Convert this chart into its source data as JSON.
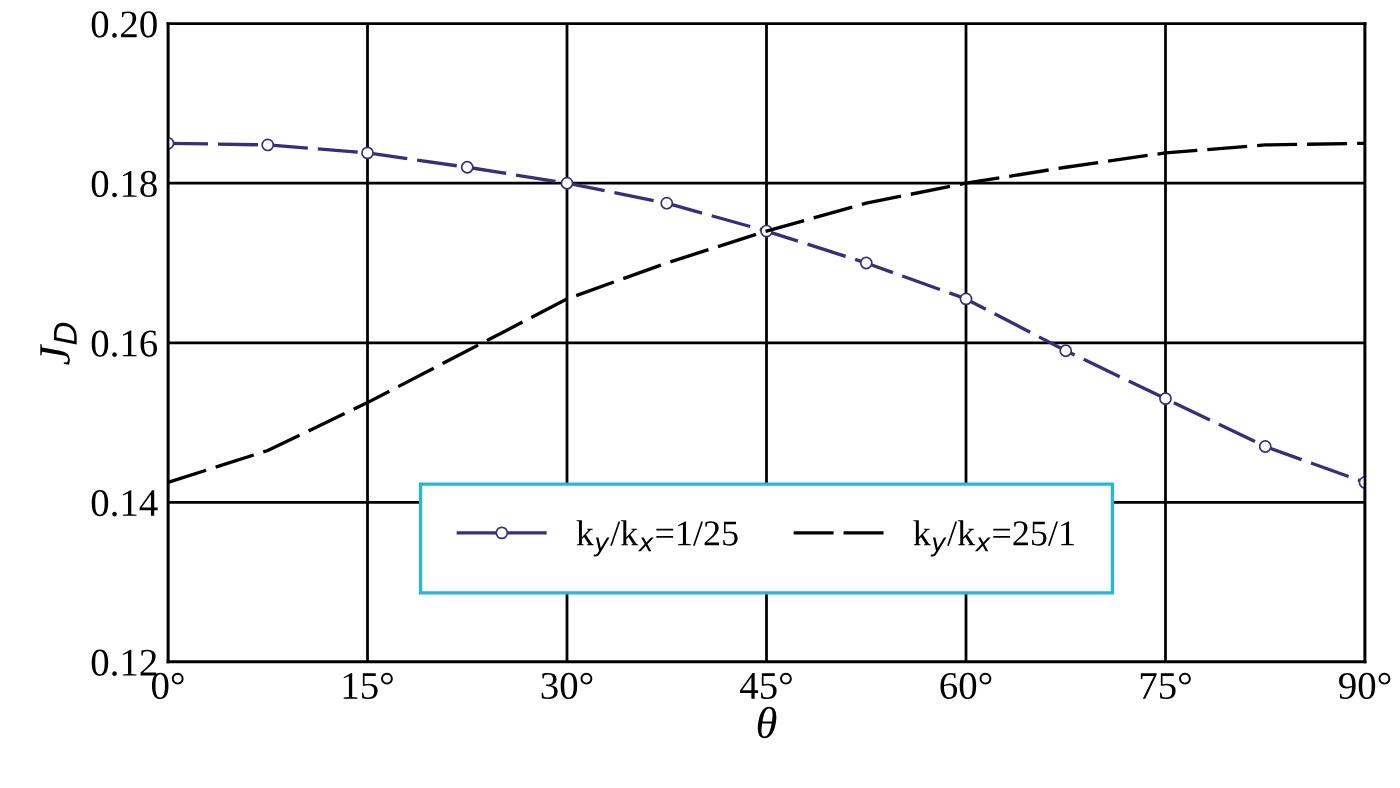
{
  "chart_data": {
    "type": "line",
    "xlabel": "θ",
    "ylabel": "J$_{D}$",
    "x": [
      0,
      7.5,
      15,
      22.5,
      30,
      37.5,
      45,
      52.5,
      60,
      67.5,
      75,
      82.5,
      90
    ],
    "series": [
      {
        "name": "k$_{y}$/k$_{x}$=1/25",
        "color": "#3b2d7a",
        "marker": "circle",
        "values": [
          0.185,
          0.1848,
          0.1838,
          0.182,
          0.18,
          0.1775,
          0.174,
          0.17,
          0.1655,
          0.159,
          0.153,
          0.147,
          0.1425
        ]
      },
      {
        "name": "k$_{y}$/k$_{x}$=25/1",
        "color": "#000000",
        "marker": "none",
        "values": [
          0.1425,
          0.1465,
          0.1525,
          0.159,
          0.1655,
          0.17,
          0.174,
          0.1775,
          0.18,
          0.182,
          0.1838,
          0.1848,
          0.185
        ]
      }
    ],
    "line_style": "dashed",
    "xlim": [
      0,
      90
    ],
    "ylim": [
      0.12,
      0.2
    ],
    "xticks": [
      {
        "value": 0,
        "label": "0°"
      },
      {
        "value": 15,
        "label": "15°"
      },
      {
        "value": 30,
        "label": "30°"
      },
      {
        "value": 45,
        "label": "45°"
      },
      {
        "value": 60,
        "label": "60°"
      },
      {
        "value": 75,
        "label": "75°"
      },
      {
        "value": 90,
        "label": "90°"
      }
    ],
    "yticks": [
      {
        "value": 0.12,
        "label": "0.12"
      },
      {
        "value": 0.14,
        "label": "0.14"
      },
      {
        "value": 0.16,
        "label": "0.16"
      },
      {
        "value": 0.18,
        "label": "0.18"
      },
      {
        "value": 0.2,
        "label": "0.20"
      }
    ],
    "grid": true,
    "legend": "bottom"
  }
}
